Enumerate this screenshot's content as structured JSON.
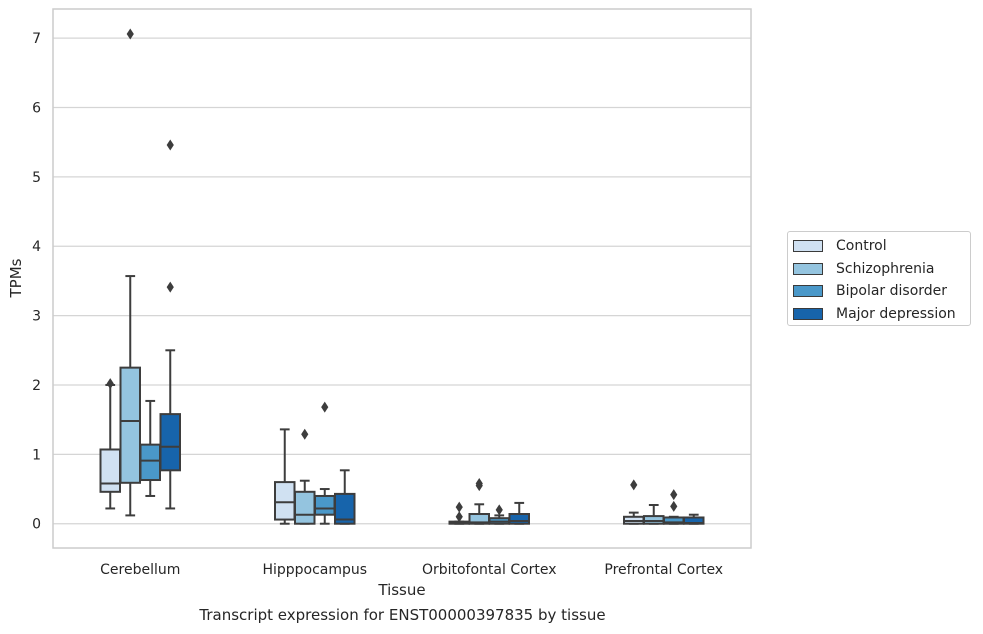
{
  "chart_data": {
    "type": "box",
    "title": "",
    "xlabel": "Tissue",
    "ylabel": "TPMs",
    "caption": "Transcript expression for ENST00000397835 by tissue",
    "ylim": [
      -0.35,
      7.42
    ],
    "yticks": [
      "0",
      "1",
      "2",
      "3",
      "4",
      "5",
      "6",
      "7"
    ],
    "grid": true,
    "legend_position": "right",
    "categories": [
      "Cerebellum",
      "Hipppocampus",
      "Orbitofontal Cortex",
      "Prefrontal Cortex"
    ],
    "series": [
      {
        "name": "Control",
        "color": "#d0e1f2",
        "boxes": [
          {
            "whislo": 0.22,
            "q1": 0.46,
            "med": 0.58,
            "q3": 1.07,
            "whishi": 2.0,
            "fliers": [
              2.02
            ]
          },
          {
            "whislo": 0.0,
            "q1": 0.06,
            "med": 0.31,
            "q3": 0.6,
            "whishi": 1.36,
            "fliers": []
          },
          {
            "whislo": 0.0,
            "q1": 0.0,
            "med": 0.01,
            "q3": 0.03,
            "whishi": 0.03,
            "fliers": [
              0.24,
              0.1
            ]
          },
          {
            "whislo": 0.0,
            "q1": 0.0,
            "med": 0.04,
            "q3": 0.1,
            "whishi": 0.16,
            "fliers": [
              0.56
            ]
          }
        ]
      },
      {
        "name": "Schizophrenia",
        "color": "#94c4df",
        "boxes": [
          {
            "whislo": 0.12,
            "q1": 0.59,
            "med": 1.48,
            "q3": 2.25,
            "whishi": 3.57,
            "fliers": [
              7.06
            ]
          },
          {
            "whislo": 0.0,
            "q1": 0.0,
            "med": 0.13,
            "q3": 0.46,
            "whishi": 0.62,
            "fliers": [
              1.29
            ]
          },
          {
            "whislo": 0.0,
            "q1": 0.0,
            "med": 0.02,
            "q3": 0.14,
            "whishi": 0.28,
            "fliers": [
              0.58,
              0.55
            ]
          },
          {
            "whislo": 0.0,
            "q1": 0.0,
            "med": 0.04,
            "q3": 0.11,
            "whishi": 0.27,
            "fliers": []
          }
        ]
      },
      {
        "name": "Bipolar disorder",
        "color": "#4a98c9",
        "boxes": [
          {
            "whislo": 0.4,
            "q1": 0.63,
            "med": 0.91,
            "q3": 1.14,
            "whishi": 1.77,
            "fliers": []
          },
          {
            "whislo": 0.0,
            "q1": 0.13,
            "med": 0.22,
            "q3": 0.4,
            "whishi": 0.5,
            "fliers": [
              1.68
            ]
          },
          {
            "whislo": 0.0,
            "q1": 0.0,
            "med": 0.03,
            "q3": 0.08,
            "whishi": 0.12,
            "fliers": [
              0.2
            ]
          },
          {
            "whislo": 0.0,
            "q1": 0.0,
            "med": 0.02,
            "q3": 0.09,
            "whishi": 0.1,
            "fliers": [
              0.42,
              0.25
            ]
          }
        ]
      },
      {
        "name": "Major depression",
        "color": "#1764ab",
        "boxes": [
          {
            "whislo": 0.22,
            "q1": 0.77,
            "med": 1.11,
            "q3": 1.58,
            "whishi": 2.5,
            "fliers": [
              5.46,
              3.41
            ]
          },
          {
            "whislo": 0.0,
            "q1": 0.0,
            "med": 0.06,
            "q3": 0.43,
            "whishi": 0.77,
            "fliers": []
          },
          {
            "whislo": 0.0,
            "q1": 0.0,
            "med": 0.04,
            "q3": 0.14,
            "whishi": 0.3,
            "fliers": []
          },
          {
            "whislo": 0.0,
            "q1": 0.0,
            "med": 0.01,
            "q3": 0.09,
            "whishi": 0.13,
            "fliers": []
          }
        ]
      }
    ]
  }
}
